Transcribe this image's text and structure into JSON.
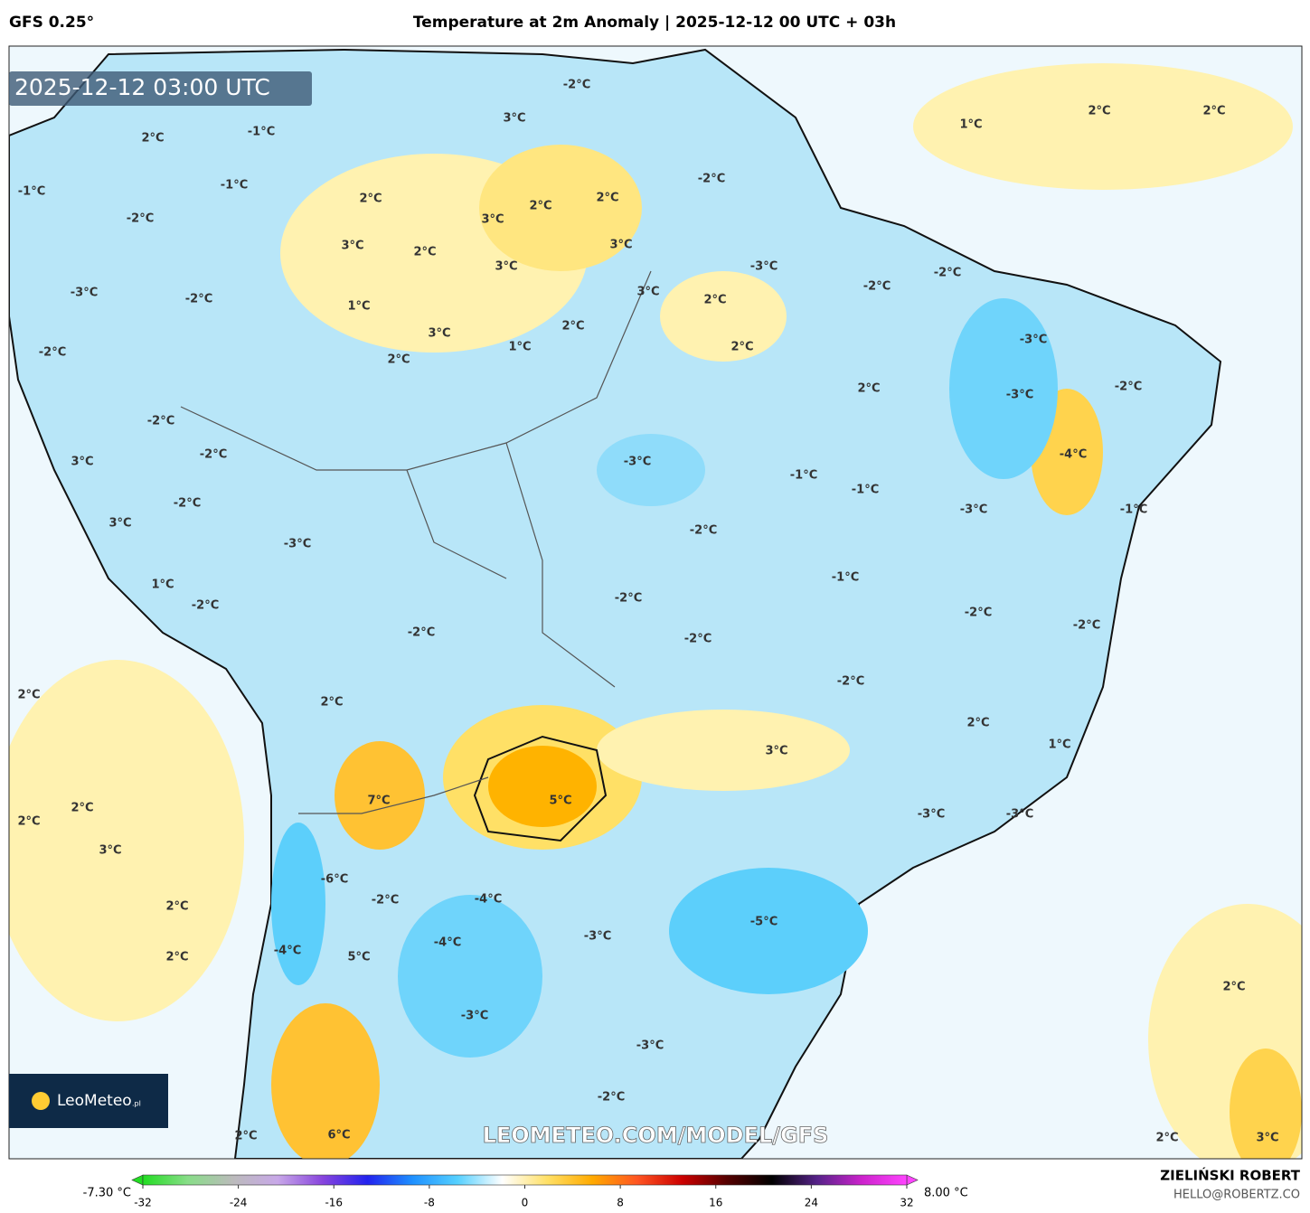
{
  "header": {
    "model": "GFS 0.25°",
    "title": "Temperature at 2m Anomaly | 2025-12-12 00 UTC + 03h"
  },
  "timestamp": "2025-12-12 03:00 UTC",
  "map_labels": [
    "-2°C",
    "3°C",
    "-1°C",
    "2°C",
    "-1°C",
    "-1°C",
    "-2°C",
    "2°C",
    "3°C",
    "2°C",
    "2°C",
    "-2°C",
    "3°C",
    "2°C",
    "3°C",
    "3°C",
    "-3°C",
    "-2°C",
    "-3°C",
    "-2°C",
    "1°C",
    "3°C",
    "2°C",
    "-2°C",
    "3°C",
    "2°C",
    "1°C",
    "2°C",
    "-3°C",
    "2°C",
    "-2°C",
    "2°C",
    "-3°C",
    "-2°C",
    "-2°C",
    "-2°C",
    "3°C",
    "-3°C",
    "-1°C",
    "-4°C",
    "-1°C",
    "-2°C",
    "-3°C",
    "-1°C",
    "3°C",
    "-2°C",
    "-3°C",
    "1°C",
    "-1°C",
    "-2°C",
    "-2°C",
    "-2°C",
    "-2°C",
    "-2°C",
    "-2°C",
    "-2°C",
    "2°C",
    "2°C",
    "2°C",
    "1°C",
    "3°C",
    "7°C",
    "5°C",
    "2°C",
    "2°C",
    "-3°C",
    "-3°C",
    "3°C",
    "-6°C",
    "-2°C",
    "-4°C",
    "2°C",
    "-5°C",
    "-3°C",
    "-4°C",
    "-4°C",
    "5°C",
    "2°C",
    "2°C",
    "-3°C",
    "-3°C",
    "-2°C",
    "2°C",
    "6°C",
    "2°C",
    "3°C",
    "1°C",
    "2°C",
    "2°C"
  ],
  "watermark": "LEOMETEO.COM/MODEL/GFS",
  "logo": {
    "name": "LeoMeteo",
    "suffix": ".pl"
  },
  "colorbar": {
    "min_label": "-7.30 °C",
    "max_label": "8.00 °C",
    "range": [
      -32,
      32
    ],
    "ticks": [
      -32,
      -24,
      -16,
      -8,
      0,
      8,
      16,
      24,
      32
    ],
    "colors": [
      "#22dd22",
      "#88dd88",
      "#bbbbbb",
      "#c8a8e8",
      "#8844dd",
      "#2222ee",
      "#1e90ff",
      "#55d0ff",
      "#ffffff",
      "#ffe066",
      "#ffaa00",
      "#ff5522",
      "#cc0000",
      "#550000",
      "#000000",
      "#552288",
      "#cc22cc",
      "#ff44ff"
    ]
  },
  "credits": {
    "name": "ZIELIŃSKI ROBERT",
    "email": "HELLO@ROBERTZ.CO"
  }
}
